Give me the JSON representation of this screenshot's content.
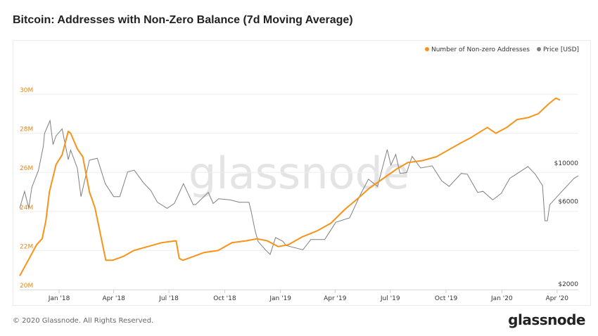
{
  "title": "Bitcoin: Addresses with Non-Zero Balance (7d Moving Average)",
  "footer": "© 2020 Glassnode. All Rights Reserved.",
  "logo": "glassnode",
  "watermark": "glassnode",
  "colors": {
    "addresses": "#f7931a",
    "price": "#7f7f7f",
    "left_axis": "#e08a1e"
  },
  "chart_data": {
    "type": "line",
    "title": "Bitcoin: Addresses with Non-Zero Balance (7d Moving Average)",
    "legend_position": "top-right",
    "grid": true,
    "x_range": [
      "2017-10-28",
      "2020-05-06"
    ],
    "x_ticks": [
      {
        "date": "2018-01-01",
        "label": "Jan '18"
      },
      {
        "date": "2018-04-01",
        "label": "Apr '18"
      },
      {
        "date": "2018-07-01",
        "label": "Jul '18"
      },
      {
        "date": "2018-10-01",
        "label": "Oct '18"
      },
      {
        "date": "2019-01-01",
        "label": "Jan '19"
      },
      {
        "date": "2019-04-01",
        "label": "Apr '19"
      },
      {
        "date": "2019-07-01",
        "label": "Jul '19"
      },
      {
        "date": "2019-10-01",
        "label": "Oct '19"
      },
      {
        "date": "2020-01-01",
        "label": "Jan '20"
      },
      {
        "date": "2020-04-01",
        "label": "Apr '20"
      }
    ],
    "y_left": {
      "scale": "linear",
      "range": [
        20000000,
        32000000
      ],
      "ticks": [
        {
          "v": 20000000,
          "label": "20M"
        },
        {
          "v": 22000000,
          "label": "22M"
        },
        {
          "v": 24000000,
          "label": "24M"
        },
        {
          "v": 26000000,
          "label": "26M"
        },
        {
          "v": 28000000,
          "label": "28M"
        },
        {
          "v": 30000000,
          "label": "30M"
        }
      ]
    },
    "y_right": {
      "scale": "log",
      "range": [
        2000,
        40000
      ],
      "ticks": [
        {
          "v": 2000,
          "label": "$2000"
        },
        {
          "v": 6000,
          "label": "$6000"
        },
        {
          "v": 10000,
          "label": "$10000"
        }
      ]
    },
    "series": [
      {
        "name": "Number of Non-zero Addresses",
        "axis": "left",
        "points": [
          [
            "2017-10-28",
            20.7
          ],
          [
            "2017-11-11",
            21.5
          ],
          [
            "2017-11-25",
            22.3
          ],
          [
            "2017-12-04",
            22.6
          ],
          [
            "2017-12-10",
            23.5
          ],
          [
            "2017-12-16",
            25.0
          ],
          [
            "2017-12-27",
            26.4
          ],
          [
            "2018-01-06",
            26.9
          ],
          [
            "2018-01-16",
            28.1
          ],
          [
            "2018-01-20",
            28.0
          ],
          [
            "2018-01-31",
            27.2
          ],
          [
            "2018-02-09",
            26.8
          ],
          [
            "2018-02-20",
            25.0
          ],
          [
            "2018-03-01",
            24.2
          ],
          [
            "2018-03-09",
            23.0
          ],
          [
            "2018-03-19",
            21.5
          ],
          [
            "2018-03-30",
            21.5
          ],
          [
            "2018-04-17",
            21.7
          ],
          [
            "2018-05-04",
            22.0
          ],
          [
            "2018-05-27",
            22.2
          ],
          [
            "2018-06-19",
            22.4
          ],
          [
            "2018-07-13",
            22.5
          ],
          [
            "2018-07-18",
            21.6
          ],
          [
            "2018-07-24",
            21.5
          ],
          [
            "2018-08-11",
            21.7
          ],
          [
            "2018-08-28",
            21.9
          ],
          [
            "2018-09-20",
            22.0
          ],
          [
            "2018-10-13",
            22.4
          ],
          [
            "2018-11-06",
            22.5
          ],
          [
            "2018-11-23",
            22.6
          ],
          [
            "2018-12-10",
            22.5
          ],
          [
            "2018-12-28",
            22.2
          ],
          [
            "2019-01-14",
            22.3
          ],
          [
            "2019-02-06",
            22.7
          ],
          [
            "2019-03-02",
            23.0
          ],
          [
            "2019-03-25",
            23.4
          ],
          [
            "2019-04-17",
            24.1
          ],
          [
            "2019-05-10",
            24.7
          ],
          [
            "2019-05-28",
            25.2
          ],
          [
            "2019-06-20",
            25.7
          ],
          [
            "2019-07-13",
            26.2
          ],
          [
            "2019-07-30",
            26.5
          ],
          [
            "2019-08-23",
            26.6
          ],
          [
            "2019-09-15",
            26.8
          ],
          [
            "2019-10-08",
            27.2
          ],
          [
            "2019-10-25",
            27.5
          ],
          [
            "2019-11-12",
            27.8
          ],
          [
            "2019-12-08",
            28.3
          ],
          [
            "2019-12-22",
            28.0
          ],
          [
            "2020-01-09",
            28.3
          ],
          [
            "2020-01-26",
            28.7
          ],
          [
            "2020-02-13",
            28.8
          ],
          [
            "2020-03-01",
            29.0
          ],
          [
            "2020-03-18",
            29.5
          ],
          [
            "2020-03-30",
            29.8
          ],
          [
            "2020-04-06",
            29.7
          ]
        ]
      },
      {
        "name": "Price [USD]",
        "axis": "right",
        "points": [
          [
            "2017-10-28",
            5900
          ],
          [
            "2017-11-05",
            7400
          ],
          [
            "2017-11-12",
            5900
          ],
          [
            "2017-11-17",
            7800
          ],
          [
            "2017-11-28",
            9800
          ],
          [
            "2017-12-06",
            13500
          ],
          [
            "2017-12-08",
            16000
          ],
          [
            "2017-12-17",
            19000
          ],
          [
            "2017-12-22",
            13800
          ],
          [
            "2017-12-27",
            15500
          ],
          [
            "2018-01-06",
            17000
          ],
          [
            "2018-01-16",
            11300
          ],
          [
            "2018-01-20",
            12800
          ],
          [
            "2018-01-31",
            10100
          ],
          [
            "2018-02-06",
            6900
          ],
          [
            "2018-02-20",
            11200
          ],
          [
            "2018-03-05",
            11500
          ],
          [
            "2018-03-18",
            8200
          ],
          [
            "2018-04-01",
            6900
          ],
          [
            "2018-04-11",
            6900
          ],
          [
            "2018-04-24",
            9600
          ],
          [
            "2018-05-05",
            9800
          ],
          [
            "2018-05-20",
            8300
          ],
          [
            "2018-06-01",
            7500
          ],
          [
            "2018-06-12",
            6400
          ],
          [
            "2018-06-28",
            5900
          ],
          [
            "2018-07-10",
            6300
          ],
          [
            "2018-07-25",
            8200
          ],
          [
            "2018-08-10",
            6200
          ],
          [
            "2018-08-14",
            6200
          ],
          [
            "2018-09-04",
            7300
          ],
          [
            "2018-09-12",
            6300
          ],
          [
            "2018-09-21",
            6700
          ],
          [
            "2018-10-10",
            6600
          ],
          [
            "2018-10-25",
            6400
          ],
          [
            "2018-11-10",
            6400
          ],
          [
            "2018-11-14",
            5600
          ],
          [
            "2018-11-20",
            4400
          ],
          [
            "2018-11-25",
            3800
          ],
          [
            "2018-12-07",
            3400
          ],
          [
            "2018-12-15",
            3200
          ],
          [
            "2018-12-24",
            4000
          ],
          [
            "2019-01-05",
            3800
          ],
          [
            "2019-01-10",
            3600
          ],
          [
            "2019-02-07",
            3400
          ],
          [
            "2019-02-20",
            3900
          ],
          [
            "2019-03-15",
            3900
          ],
          [
            "2019-04-02",
            4900
          ],
          [
            "2019-04-25",
            5200
          ],
          [
            "2019-05-12",
            7000
          ],
          [
            "2019-05-26",
            8700
          ],
          [
            "2019-06-10",
            7900
          ],
          [
            "2019-06-26",
            12900
          ],
          [
            "2019-07-02",
            10500
          ],
          [
            "2019-07-10",
            12100
          ],
          [
            "2019-07-17",
            9400
          ],
          [
            "2019-07-28",
            9500
          ],
          [
            "2019-08-06",
            11800
          ],
          [
            "2019-08-20",
            10100
          ],
          [
            "2019-09-08",
            10400
          ],
          [
            "2019-09-24",
            8500
          ],
          [
            "2019-10-06",
            7900
          ],
          [
            "2019-10-26",
            9400
          ],
          [
            "2019-11-05",
            9300
          ],
          [
            "2019-11-22",
            7300
          ],
          [
            "2019-12-01",
            7400
          ],
          [
            "2019-12-17",
            6600
          ],
          [
            "2019-12-31",
            7200
          ],
          [
            "2020-01-14",
            8800
          ],
          [
            "2020-02-13",
            10300
          ],
          [
            "2020-02-25",
            9300
          ],
          [
            "2020-03-08",
            8000
          ],
          [
            "2020-03-12",
            5000
          ],
          [
            "2020-03-16",
            5000
          ],
          [
            "2020-03-20",
            6200
          ],
          [
            "2020-04-06",
            7200
          ],
          [
            "2020-04-29",
            8800
          ],
          [
            "2020-05-06",
            9100
          ]
        ]
      }
    ]
  }
}
